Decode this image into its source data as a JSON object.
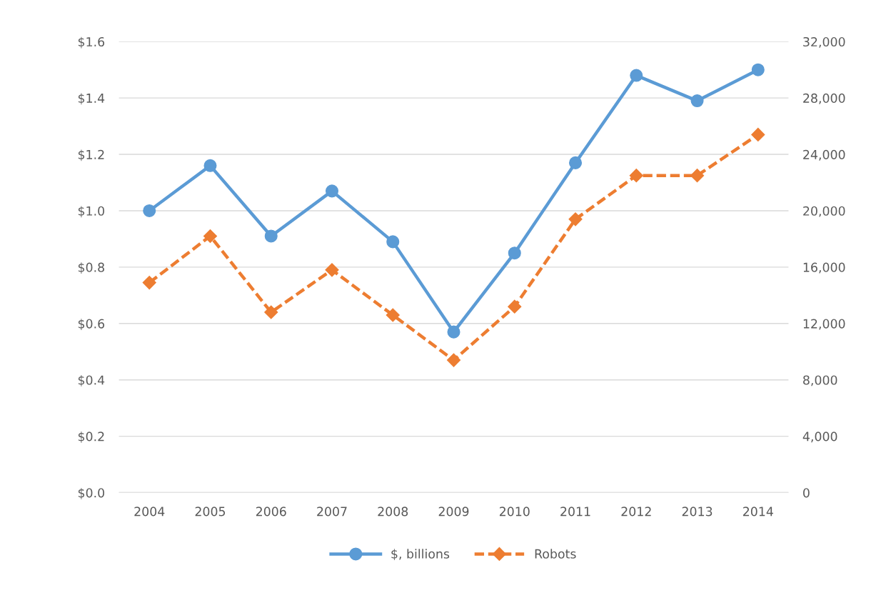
{
  "chart_data": {
    "type": "line",
    "categories": [
      "2004",
      "2005",
      "2006",
      "2007",
      "2008",
      "2009",
      "2010",
      "2011",
      "2012",
      "2013",
      "2014"
    ],
    "series": [
      {
        "name": "$, billions",
        "color": "#5b9bd5",
        "marker": "circle",
        "line_style": "solid",
        "values": [
          1.0,
          1.16,
          0.91,
          1.07,
          0.89,
          0.57,
          0.85,
          1.17,
          1.48,
          1.39,
          1.5
        ]
      },
      {
        "name": "Robots",
        "color": "#ed7d31",
        "marker": "diamond",
        "line_style": "dashed",
        "axis": "y2",
        "values": [
          14900,
          18200,
          12800,
          15800,
          12600,
          9400,
          13200,
          19400,
          22500,
          22500,
          25400
        ]
      }
    ],
    "ylim": [
      0,
      1.6
    ],
    "yticks": [
      {
        "value": 0,
        "label": "$0.0"
      },
      {
        "value": 0.2,
        "label": "$0.2"
      },
      {
        "value": 0.4,
        "label": "$0.4"
      },
      {
        "value": 0.6,
        "label": "$0.6"
      },
      {
        "value": 0.8,
        "label": "$0.8"
      },
      {
        "value": 1.0,
        "label": "$1.0"
      },
      {
        "value": 1.2,
        "label": "$1.2"
      },
      {
        "value": 1.4,
        "label": "$1.4"
      },
      {
        "value": 1.6,
        "label": "$1.6"
      }
    ],
    "y2lim": [
      0,
      32000
    ],
    "y2ticks": [
      0,
      {
        "value": 4000,
        "label": "4,000"
      },
      {
        "value": 8000,
        "label": "8,000"
      },
      {
        "value": 12000,
        "label": "12,000"
      },
      {
        "value": 16000,
        "label": "16,000"
      },
      {
        "value": 20000,
        "label": "20,000"
      },
      {
        "value": 24000,
        "label": "24,000"
      },
      {
        "value": 28000,
        "label": "28,000"
      },
      {
        "value": 32000,
        "label": "32,000"
      }
    ],
    "grid": "y",
    "legend": "bottom"
  }
}
